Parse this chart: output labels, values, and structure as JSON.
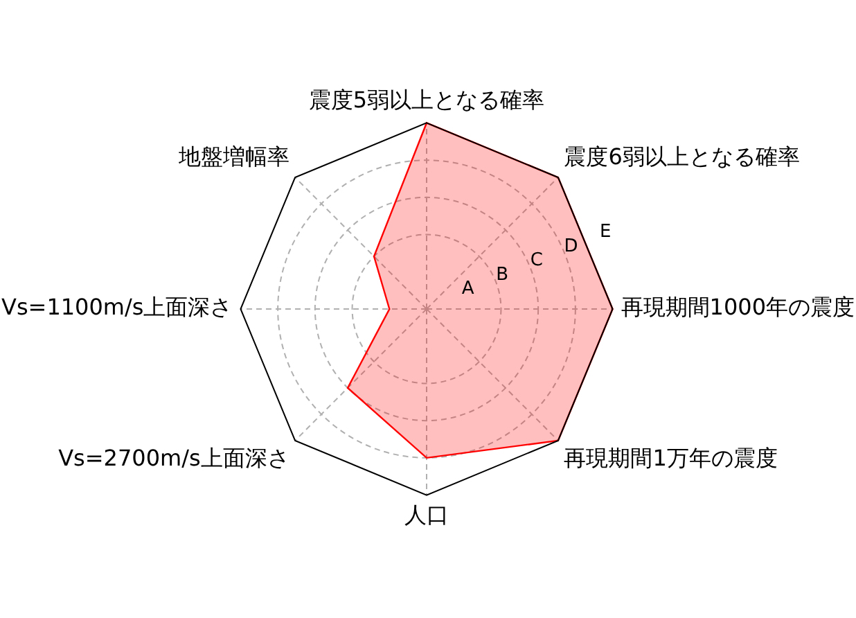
{
  "chart_data": {
    "type": "radar",
    "categories": [
      "震度5弱以上となる確率",
      "震度6弱以上となる確率",
      "再現期間1000年の震度",
      "再現期間1万年の震度",
      "人口",
      "Vs=2700m/s上面深さ",
      "Vs=1100m/s上面深さ",
      "地盤増幅率"
    ],
    "series": [
      {
        "color": "#ff0000",
        "values": [
          5,
          5,
          5,
          5,
          4,
          3,
          1,
          2
        ]
      }
    ],
    "ylim": [
      0,
      5
    ],
    "yticks": [
      {
        "value": 1,
        "label": "A"
      },
      {
        "value": 2,
        "label": "B"
      },
      {
        "value": 3,
        "label": "C"
      },
      {
        "value": 4,
        "label": "D"
      },
      {
        "value": 5,
        "label": "E"
      }
    ],
    "grid": true
  }
}
